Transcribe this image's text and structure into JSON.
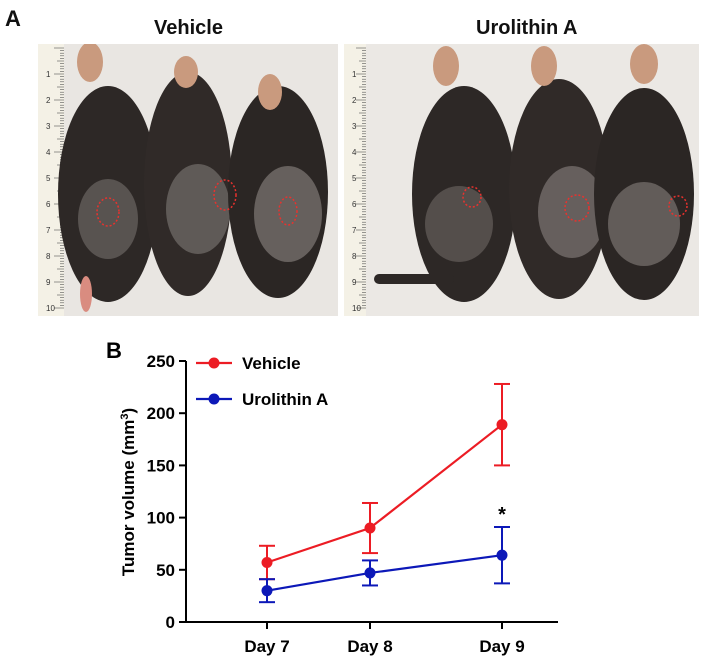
{
  "panel_a": {
    "letter": "A",
    "titles": [
      "Vehicle",
      "Urolithin A"
    ],
    "ruler_labels": [
      "1",
      "2",
      "3",
      "4",
      "5",
      "6",
      "7",
      "8",
      "9",
      "10"
    ],
    "colors": {
      "background": "#e9e6e2",
      "fur": "#2b2624",
      "ear": "#c99a7e",
      "tumor_outline": "#e8322e",
      "ruler": "#f4f1e6"
    }
  },
  "chart_data": {
    "type": "line",
    "panel_letter": "B",
    "categories": [
      "Day 7",
      "Day 8",
      "Day 9"
    ],
    "series": [
      {
        "name": "Vehicle",
        "color": "#ec1c24",
        "values": [
          57,
          90,
          189
        ],
        "errors": [
          16,
          24,
          39
        ]
      },
      {
        "name": "Urolithin A",
        "color": "#0c18b8",
        "values": [
          30,
          47,
          64
        ],
        "errors": [
          11,
          12,
          27
        ]
      }
    ],
    "ylabel": "Tumor volume (mm",
    "ylabel_sup": "3",
    "ylabel_close": ")",
    "ylim": [
      0,
      250
    ],
    "yticks": [
      0,
      50,
      100,
      150,
      200,
      250
    ],
    "significance": {
      "label": "*",
      "category": "Day 9",
      "series": "Urolithin A"
    },
    "grid": false,
    "legend_position": "top-left"
  }
}
